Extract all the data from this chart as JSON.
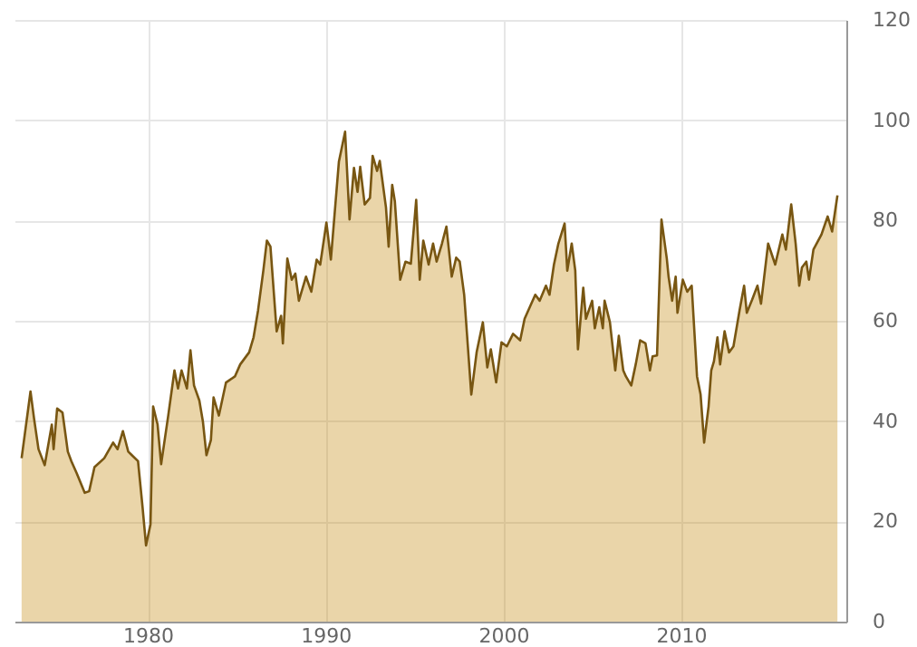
{
  "chart_data": {
    "type": "area",
    "grid": true,
    "xlim": [
      1972.5,
      2019.3
    ],
    "xticks": [
      1980,
      1990,
      2000,
      2010
    ],
    "ylim": [
      0,
      120
    ],
    "yticks": [
      0,
      20,
      40,
      60,
      80,
      100,
      120
    ],
    "series": [
      {
        "color": "#c8901e",
        "x": [
          1972.9,
          1973.4,
          1973.6,
          1973.85,
          1974.2,
          1974.6,
          1974.7,
          1974.9,
          1975.2,
          1975.5,
          1975.7,
          1976.0,
          1976.45,
          1976.7,
          1977.0,
          1977.55,
          1978.05,
          1978.3,
          1978.6,
          1978.9,
          1979.1,
          1979.45,
          1979.7,
          1979.9,
          1980.15,
          1980.3,
          1980.55,
          1980.75,
          1981.15,
          1981.5,
          1981.7,
          1981.9,
          1982.2,
          1982.4,
          1982.6,
          1982.9,
          1983.1,
          1983.3,
          1983.55,
          1983.7,
          1984.0,
          1984.4,
          1984.9,
          1985.2,
          1985.7,
          1985.95,
          1986.2,
          1986.5,
          1986.7,
          1986.9,
          1987.25,
          1987.5,
          1987.6,
          1987.85,
          1988.1,
          1988.3,
          1988.5,
          1988.9,
          1989.2,
          1989.5,
          1989.7,
          1990.05,
          1990.3,
          1990.75,
          1991.1,
          1991.35,
          1991.6,
          1991.8,
          1991.95,
          1992.2,
          1992.5,
          1992.65,
          1992.9,
          1993.05,
          1993.4,
          1993.55,
          1993.75,
          1993.9,
          1994.2,
          1994.5,
          1994.8,
          1995.1,
          1995.3,
          1995.5,
          1995.8,
          1996.05,
          1996.25,
          1996.55,
          1996.8,
          1997.1,
          1997.35,
          1997.55,
          1997.8,
          1998.2,
          1998.5,
          1998.85,
          1999.1,
          1999.3,
          1999.6,
          1999.9,
          2000.2,
          2000.55,
          2000.95,
          2001.2,
          2001.8,
          2002.05,
          2002.4,
          2002.6,
          2002.85,
          2003.1,
          2003.45,
          2003.6,
          2003.85,
          2004.05,
          2004.2,
          2004.5,
          2004.65,
          2005.0,
          2005.15,
          2005.4,
          2005.6,
          2005.7,
          2006.0,
          2006.3,
          2006.5,
          2006.75,
          2006.9,
          2007.2,
          2007.45,
          2007.7,
          2008.0,
          2008.25,
          2008.4,
          2008.65,
          2008.9,
          2009.2,
          2009.3,
          2009.5,
          2009.7,
          2009.8,
          2010.1,
          2010.35,
          2010.6,
          2010.9,
          2011.1,
          2011.3,
          2011.55,
          2011.7,
          2011.85,
          2012.05,
          2012.2,
          2012.45,
          2012.7,
          2012.95,
          2013.3,
          2013.55,
          2013.7,
          2014.0,
          2014.3,
          2014.5,
          2014.9,
          2015.3,
          2015.7,
          2015.9,
          2016.2,
          2016.45,
          2016.65,
          2016.8,
          2017.05,
          2017.2,
          2017.45,
          2017.9,
          2018.25,
          2018.5,
          2018.8
        ],
        "values": [
          32.6,
          45.9,
          40.5,
          34.4,
          31.2,
          39.3,
          34.4,
          42.5,
          41.7,
          33.9,
          32,
          29.6,
          25.7,
          26,
          30.8,
          32.6,
          35.7,
          34.4,
          38,
          33.9,
          33.2,
          32,
          23,
          15.2,
          19.4,
          42.9,
          39.3,
          31.4,
          41.1,
          50.1,
          46.5,
          50.1,
          46.5,
          54.1,
          47.1,
          44.1,
          39.9,
          33.2,
          36.2,
          44.7,
          41.1,
          47.7,
          48.9,
          51.3,
          53.7,
          56.7,
          62,
          70,
          76,
          74.8,
          57.9,
          61,
          55.5,
          72.4,
          68.2,
          69.4,
          64,
          68.8,
          65.8,
          72.2,
          71.2,
          79.6,
          72.2,
          91.7,
          97.7,
          80.2,
          90.5,
          85.7,
          90.7,
          83.2,
          84.5,
          92.9,
          89.9,
          91.9,
          82.6,
          74.8,
          87.1,
          83.8,
          68.2,
          71.8,
          71.4,
          84.1,
          68.2,
          76,
          71.2,
          75.4,
          71.8,
          75.4,
          78.8,
          68.8,
          72.6,
          71.8,
          65.2,
          45.3,
          53.7,
          59.7,
          50.7,
          54.3,
          47.7,
          55.7,
          54.9,
          57.4,
          56.1,
          60.4,
          65.2,
          64,
          67,
          65.2,
          71.2,
          75.4,
          79.4,
          70,
          75.4,
          70,
          54.3,
          66.6,
          60.4,
          64,
          58.5,
          62.7,
          58.5,
          64,
          59.7,
          50.1,
          57,
          50.1,
          48.9,
          47.1,
          51.3,
          56.1,
          55.5,
          50.1,
          52.9,
          53.1,
          80.2,
          72.4,
          68.8,
          64,
          68.8,
          61.6,
          68.2,
          65.8,
          67,
          48.9,
          45.3,
          35.7,
          42.9,
          50.1,
          51.9,
          56.7,
          51.3,
          57.9,
          53.7,
          54.9,
          62.2,
          67,
          61.6,
          64.2,
          67,
          63.4,
          75.4,
          71.2,
          77.2,
          74.2,
          83.2,
          75.4,
          67,
          70.6,
          71.8,
          68.2,
          74.2,
          77.2,
          80.8,
          77.8,
          85
        ]
      }
    ]
  }
}
